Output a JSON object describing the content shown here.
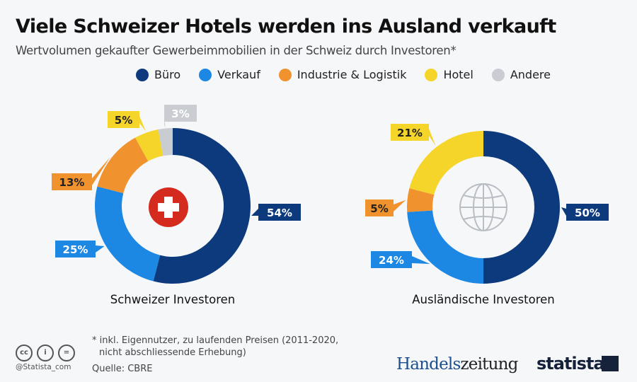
{
  "title": "Viele Schweizer Hotels werden ins Ausland verkauft",
  "subtitle": "Wertvolumen gekaufter Gewerbeimmobilien in der Schweiz durch Investoren*",
  "chart_data": [
    {
      "type": "pie",
      "title": "Schweizer Investoren",
      "center_icon": "swiss-flag-icon",
      "categories": [
        "Büro",
        "Verkauf",
        "Industrie & Logistik",
        "Hotel",
        "Andere"
      ],
      "values": [
        54,
        25,
        13,
        5,
        3
      ],
      "labels": [
        "54%",
        "25%",
        "13%",
        "5%",
        "3%"
      ],
      "unit": "%"
    },
    {
      "type": "pie",
      "title": "Ausländische Investoren",
      "center_icon": "globe-icon",
      "categories": [
        "Büro",
        "Verkauf",
        "Industrie & Logistik",
        "Hotel"
      ],
      "values": [
        50,
        24,
        5,
        21
      ],
      "labels": [
        "50%",
        "24%",
        "5%",
        "21%"
      ],
      "unit": "%"
    }
  ],
  "legend": [
    {
      "label": "Büro",
      "color": "#0d3a7d"
    },
    {
      "label": "Verkauf",
      "color": "#1d87e4"
    },
    {
      "label": "Industrie & Logistik",
      "color": "#f0922d"
    },
    {
      "label": "Hotel",
      "color": "#f6d52a"
    },
    {
      "label": "Andere",
      "color": "#c9cdd1"
    }
  ],
  "footer": {
    "note_line1": "* inkl. Eigennutzer, zu laufenden Preisen (2011-2020,",
    "note_line2": "nicht abschliessende Erhebung)",
    "source": "Quelle: CBRE",
    "handle": "@Statista_com",
    "partner_a": "Handels",
    "partner_b": "zeitung",
    "brand": "statista"
  }
}
